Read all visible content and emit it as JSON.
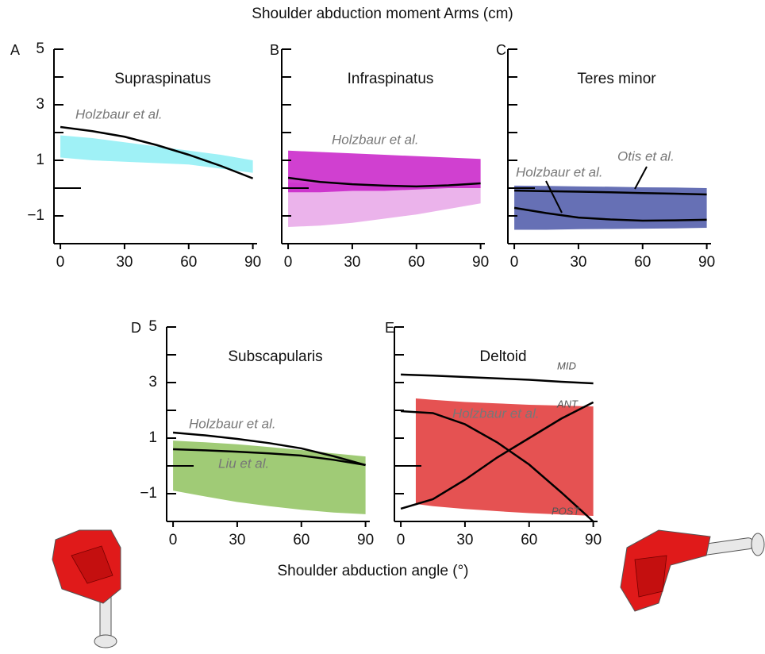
{
  "title": "Shoulder abduction moment Arms (cm)",
  "xlabel": "Shoulder abduction angle (°)",
  "chart_data": [
    {
      "type": "line",
      "panel": "A",
      "title": "Supraspinatus",
      "xlim": [
        -3,
        92
      ],
      "ylim": [
        -2,
        5
      ],
      "xticks": [
        0,
        30,
        60,
        90
      ],
      "yticks": [
        5,
        3,
        1,
        {
          "value": -1,
          "label": "−1"
        }
      ],
      "yminor": [
        4,
        2,
        0,
        -2
      ],
      "ytick_labels": true,
      "hline": 0,
      "x": [
        0,
        15,
        30,
        45,
        60,
        75,
        90
      ],
      "bands": [
        {
          "color": "#8eeef5",
          "x": [
            0,
            15,
            30,
            45,
            60,
            75,
            90
          ],
          "upper": [
            1.9,
            1.8,
            1.65,
            1.5,
            1.35,
            1.2,
            1.0
          ],
          "lower": [
            1.1,
            1.0,
            0.95,
            0.9,
            0.85,
            0.7,
            0.55
          ]
        }
      ],
      "series": [
        {
          "name": "Holzbaur et al.",
          "color": "#000000",
          "values": [
            2.2,
            2.05,
            1.85,
            1.55,
            1.2,
            0.8,
            0.35
          ]
        }
      ]
    },
    {
      "type": "line",
      "panel": "B",
      "title": "Infraspinatus",
      "xlim": [
        -3,
        92
      ],
      "ylim": [
        -2,
        5
      ],
      "xticks": [
        0,
        30,
        60,
        90
      ],
      "yticks": [
        5,
        3,
        1,
        {
          "value": -1,
          "label": "−1"
        }
      ],
      "yminor": [
        4,
        2,
        0,
        -2
      ],
      "ytick_labels": false,
      "hline": 0,
      "x": [
        0,
        15,
        30,
        45,
        60,
        75,
        90
      ],
      "bands": [
        {
          "color": "#e8a6e8",
          "x": [
            0,
            15,
            30,
            45,
            60,
            75,
            90
          ],
          "upper": [
            0.2,
            0.15,
            0.1,
            0.1,
            0.1,
            0.1,
            0.1
          ],
          "lower": [
            -1.4,
            -1.35,
            -1.25,
            -1.1,
            -0.95,
            -0.75,
            -0.55
          ]
        },
        {
          "color": "#c81ec8",
          "x": [
            0,
            15,
            30,
            45,
            60,
            75,
            90
          ],
          "upper": [
            1.35,
            1.3,
            1.25,
            1.2,
            1.15,
            1.1,
            1.05
          ],
          "lower": [
            -0.15,
            -0.15,
            -0.1,
            -0.1,
            -0.05,
            0,
            0
          ]
        }
      ],
      "series": [
        {
          "name": "Holzbaur et al.",
          "color": "#000000",
          "values": [
            0.37,
            0.22,
            0.14,
            0.09,
            0.06,
            0.1,
            0.17
          ]
        }
      ]
    },
    {
      "type": "line",
      "panel": "C",
      "title": "Teres minor",
      "xlim": [
        -3,
        92
      ],
      "ylim": [
        -2,
        5
      ],
      "xticks": [
        0,
        30,
        60,
        90
      ],
      "yticks": [
        5,
        3,
        1,
        {
          "value": -1,
          "label": "−1"
        }
      ],
      "yminor": [
        4,
        2,
        0,
        -2
      ],
      "ytick_labels": false,
      "hline": 0,
      "x": [
        0,
        15,
        30,
        45,
        60,
        75,
        90
      ],
      "bands": [
        {
          "color": "#4b57a8",
          "x": [
            0,
            15,
            30,
            45,
            60,
            75,
            90
          ],
          "upper": [
            0.09,
            0.08,
            0.06,
            0.05,
            0.03,
            0.02,
            0.0
          ],
          "lower": [
            -1.5,
            -1.5,
            -1.48,
            -1.47,
            -1.46,
            -1.45,
            -1.43
          ]
        }
      ],
      "series": [
        {
          "name": "Otis et al.",
          "color": "#000000",
          "values": [
            -0.09,
            -0.11,
            -0.13,
            -0.15,
            -0.18,
            -0.2,
            -0.23
          ]
        },
        {
          "name": "Holzbaur et al.",
          "color": "#000000",
          "values": [
            -0.71,
            -0.9,
            -1.06,
            -1.13,
            -1.17,
            -1.16,
            -1.14
          ]
        }
      ]
    },
    {
      "type": "line",
      "panel": "D",
      "title": "Subscapularis",
      "xlim": [
        -3,
        92
      ],
      "ylim": [
        -2,
        5
      ],
      "xticks": [
        0,
        30,
        60,
        90
      ],
      "yticks": [
        5,
        3,
        1,
        {
          "value": -1,
          "label": "−1"
        }
      ],
      "yminor": [
        4,
        2,
        0,
        -2
      ],
      "ytick_labels": true,
      "hline": 0,
      "x": [
        0,
        15,
        30,
        45,
        60,
        75,
        90
      ],
      "bands": [
        {
          "color": "#8fc25e",
          "x": [
            0,
            15,
            30,
            45,
            60,
            75,
            90
          ],
          "upper": [
            0.91,
            0.85,
            0.78,
            0.68,
            0.57,
            0.45,
            0.34
          ],
          "lower": [
            -0.89,
            -1.1,
            -1.3,
            -1.45,
            -1.58,
            -1.68,
            -1.74
          ]
        }
      ],
      "series": [
        {
          "name": "Holzbaur et al.",
          "color": "#000000",
          "values": [
            1.2,
            1.1,
            0.97,
            0.82,
            0.63,
            0.35,
            0.03
          ]
        },
        {
          "name": "Liu et al.",
          "color": "#000000",
          "values": [
            0.6,
            0.56,
            0.51,
            0.45,
            0.37,
            0.22,
            0.03
          ]
        }
      ]
    },
    {
      "type": "line",
      "panel": "E",
      "title": "Deltoid",
      "annotation": "Holzbaur et al.",
      "xlim": [
        -3,
        92
      ],
      "ylim": [
        -2,
        5
      ],
      "xticks": [
        0,
        30,
        60,
        90
      ],
      "yticks": [
        5,
        3,
        1,
        {
          "value": -1,
          "label": "−1"
        }
      ],
      "yminor": [
        4,
        2,
        0,
        -2
      ],
      "ytick_labels": false,
      "hline": 0,
      "x": [
        0,
        15,
        30,
        45,
        60,
        75,
        90
      ],
      "bands": [
        {
          "color": "#e03434",
          "x": [
            7,
            15,
            30,
            45,
            60,
            75,
            90
          ],
          "upper": [
            2.43,
            2.38,
            2.3,
            2.25,
            2.2,
            2.17,
            2.14
          ],
          "lower": [
            -1.37,
            -1.45,
            -1.55,
            -1.63,
            -1.7,
            -1.75,
            -1.8
          ]
        }
      ],
      "series": [
        {
          "name": "MID",
          "color": "#000000",
          "values": [
            3.29,
            3.25,
            3.2,
            3.15,
            3.1,
            3.03,
            2.97
          ]
        },
        {
          "name": "ANT",
          "color": "#000000",
          "values": [
            -1.54,
            -1.2,
            -0.5,
            0.3,
            1.0,
            1.7,
            2.29
          ]
        },
        {
          "name": "POST",
          "color": "#000000",
          "values": [
            1.97,
            1.9,
            1.5,
            0.85,
            0.05,
            -0.95,
            -2.0
          ]
        }
      ]
    }
  ]
}
